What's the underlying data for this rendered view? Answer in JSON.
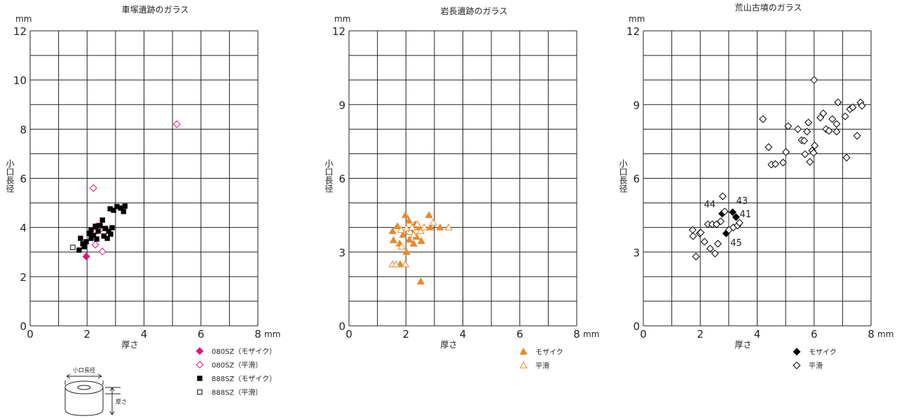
{
  "chart_data": [
    {
      "type": "scatter",
      "title": "車塚遺跡のガラス",
      "xlabel": "厚さ",
      "ylabel": "小口長径",
      "x_unit": "mm",
      "y_unit": "mm",
      "xlim": [
        0,
        8
      ],
      "ylim": [
        0,
        12
      ],
      "xticks": [
        0,
        2,
        4,
        6,
        8
      ],
      "yticks": [
        0,
        2,
        4,
        6,
        8,
        10,
        12
      ],
      "xgrid": [
        0,
        1,
        2,
        3,
        4,
        5,
        6,
        7,
        8
      ],
      "ygrid": [
        0,
        1,
        2,
        3,
        4,
        5,
        6,
        7,
        8,
        9,
        10,
        11,
        12
      ],
      "diagram": {
        "diameter_label": "小口長径",
        "thickness_label": "厚さ"
      },
      "series": [
        {
          "name": "080SZ（モザイク）",
          "color": "#e0147f",
          "marker": "diamond",
          "filled": true,
          "x": [
            1.97,
            2.3
          ],
          "values": [
            2.82,
            3.9
          ]
        },
        {
          "name": "080SZ（平滑）",
          "color": "#e0147f",
          "marker": "diamond",
          "filled": false,
          "x": [
            5.15,
            2.22,
            2.29,
            2.54,
            2.34,
            2.44,
            2.27
          ],
          "values": [
            8.2,
            5.6,
            3.3,
            3.02,
            4.05,
            3.9,
            3.8
          ]
        },
        {
          "name": "888SZ（モザイク）",
          "color": "#000000",
          "marker": "square",
          "filled": true,
          "x": [
            1.77,
            1.85,
            1.97,
            2.07,
            2.14,
            2.22,
            2.29,
            2.39,
            2.46,
            2.54,
            2.59,
            2.64,
            2.71,
            2.76,
            2.83,
            2.88,
            2.81,
            2.93,
            3.05,
            3.18,
            3.28,
            3.33,
            1.72,
            1.9,
            2.14,
            2.34
          ],
          "values": [
            3.56,
            3.34,
            3.42,
            3.76,
            3.9,
            3.68,
            4.05,
            3.85,
            4.08,
            4.3,
            3.65,
            3.96,
            3.56,
            3.85,
            3.73,
            3.99,
            4.76,
            4.7,
            4.85,
            4.79,
            4.65,
            4.87,
            3.08,
            3.22,
            3.56,
            3.53
          ]
        },
        {
          "name": "888SZ（平滑）",
          "color": "#000000",
          "marker": "square",
          "filled": false,
          "x": [
            1.5
          ],
          "values": [
            3.19
          ]
        }
      ]
    },
    {
      "type": "scatter",
      "title": "岩長遺跡のガラス",
      "xlabel": "厚さ",
      "ylabel": "小口長径",
      "x_unit": "mm",
      "y_unit": "mm",
      "xlim": [
        0,
        8
      ],
      "ylim": [
        0,
        12
      ],
      "xticks": [
        0,
        2,
        4,
        6,
        8
      ],
      "yticks": [
        0,
        3,
        6,
        9,
        12
      ],
      "xgrid": [
        0,
        1,
        2,
        3,
        4,
        5,
        6,
        7,
        8
      ],
      "ygrid": [
        0,
        1,
        2,
        3,
        4,
        5,
        6,
        7,
        8,
        9,
        10,
        11,
        12
      ],
      "series": [
        {
          "name": "モザイク",
          "color": "#e8892b",
          "marker": "triangle",
          "filled": true,
          "x": [
            1.53,
            1.56,
            1.78,
            1.9,
            1.98,
            2.02,
            2.12,
            2.2,
            2.27,
            2.37,
            2.47,
            2.54,
            1.8,
            2.52,
            2.81,
            2.86,
            3.2,
            1.7,
            2.1,
            2.32
          ],
          "values": [
            3.85,
            3.48,
            3.34,
            3.7,
            4.5,
            3.0,
            3.5,
            3.85,
            3.34,
            3.62,
            4.0,
            3.45,
            2.5,
            1.8,
            4.5,
            4.0,
            4.0,
            4.05,
            4.28,
            4.13
          ]
        },
        {
          "name": "平滑",
          "color": "#e8892b",
          "marker": "triangle",
          "filled": false,
          "x": [
            1.53,
            1.65,
            1.98,
            1.85,
            2.02,
            2.15,
            2.27,
            2.4,
            2.52,
            2.64,
            2.96,
            3.5,
            1.83,
            2.22
          ],
          "values": [
            2.5,
            2.5,
            2.5,
            3.22,
            3.96,
            3.82,
            3.7,
            4.13,
            3.85,
            4.0,
            4.2,
            4.0,
            3.9,
            4.0
          ]
        }
      ]
    },
    {
      "type": "scatter",
      "title": "荒山古墳のガラス",
      "xlabel": "厚さ",
      "ylabel": "小口長径",
      "x_unit": "mm",
      "y_unit": "mm",
      "xlim": [
        0,
        8
      ],
      "ylim": [
        0,
        12
      ],
      "xticks": [
        0,
        2,
        4,
        6,
        8
      ],
      "yticks": [
        0,
        3,
        6,
        9,
        12
      ],
      "xgrid": [
        0,
        1,
        2,
        3,
        4,
        5,
        6,
        7,
        8
      ],
      "ygrid": [
        0,
        1,
        2,
        3,
        4,
        5,
        6,
        7,
        8,
        9,
        10,
        11,
        12
      ],
      "series": [
        {
          "name": "モザイク",
          "color": "#000000",
          "marker": "diamond",
          "filled": true,
          "x": [
            3.14,
            3.26,
            2.91,
            2.77
          ],
          "values": [
            4.62,
            4.42,
            3.76,
            4.56
          ],
          "point_labels": [
            "43",
            "41",
            "45",
            "44"
          ]
        },
        {
          "name": "平滑",
          "color": "#000000",
          "marker": "diamond",
          "filled": false,
          "x": [
            1.73,
            1.75,
            1.85,
            1.98,
            2.02,
            2.15,
            2.27,
            2.35,
            2.42,
            2.52,
            2.57,
            2.62,
            2.72,
            2.79,
            2.86,
            3.01,
            3.16,
            3.31,
            3.38,
            4.2,
            4.4,
            4.5,
            4.64,
            4.91,
            5.01,
            5.09,
            5.43,
            5.56,
            5.65,
            5.68,
            5.75,
            5.8,
            5.85,
            5.93,
            5.98,
            6.02,
            6.0,
            6.22,
            6.32,
            6.42,
            6.52,
            6.64,
            6.79,
            6.84,
            6.79,
            7.09,
            7.14,
            7.26,
            7.36,
            7.51,
            7.63,
            7.68
          ],
          "values": [
            3.9,
            3.65,
            2.82,
            3.76,
            3.79,
            3.42,
            4.13,
            3.14,
            4.13,
            2.94,
            4.13,
            3.34,
            4.25,
            5.27,
            4.65,
            3.9,
            4.0,
            4.08,
            4.19,
            8.41,
            7.27,
            6.56,
            6.58,
            6.64,
            7.07,
            8.12,
            8.0,
            7.55,
            7.53,
            6.98,
            7.9,
            8.27,
            6.67,
            7.13,
            7.04,
            7.33,
            10.0,
            8.47,
            8.64,
            8.0,
            7.93,
            8.41,
            8.21,
            9.09,
            7.9,
            8.52,
            6.84,
            8.81,
            8.89,
            7.73,
            9.09,
            8.95
          ]
        }
      ]
    }
  ]
}
